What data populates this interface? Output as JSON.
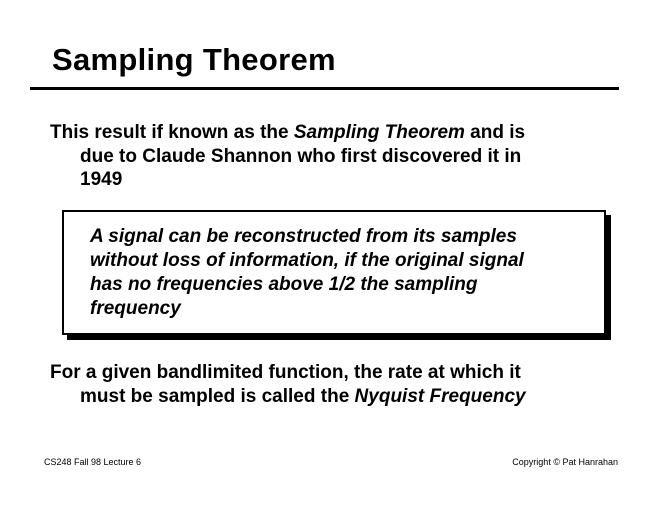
{
  "slide": {
    "title": "Sampling Theorem",
    "paragraph1": {
      "line1_a": "This result if known as the ",
      "line1_b": "Sampling Theorem",
      "line1_c": " and is",
      "line2": "due to Claude Shannon who first discovered it in",
      "line3": "1949"
    },
    "theorem_box": {
      "line1": "A signal can be reconstructed from its samples",
      "line2": "without loss of information, if the original signal",
      "line3": "has no frequencies above 1/2 the sampling",
      "line4": "frequency"
    },
    "paragraph2": {
      "line1": "For a given bandlimited function, the rate at which it",
      "line2_a": "must be sampled is called the ",
      "line2_b": "Nyquist Frequency"
    },
    "footer": {
      "left": "CS248 Fall 98 Lecture 6",
      "right": "Copyright © Pat Hanrahan"
    }
  }
}
